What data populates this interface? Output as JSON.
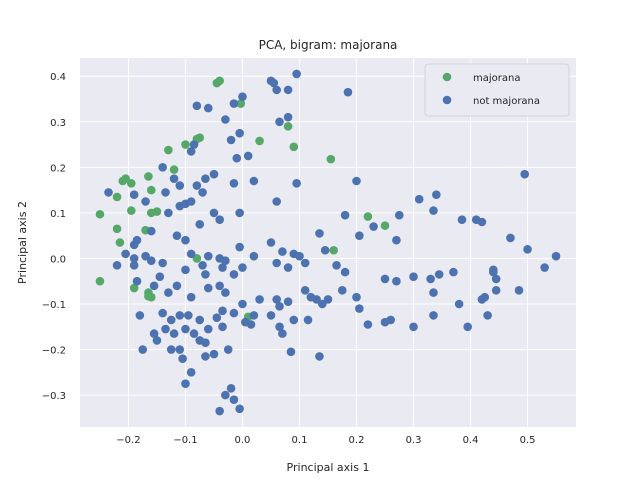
{
  "chart_data": {
    "type": "scatter",
    "title": "PCA, bigram: majorana",
    "xlabel": "Principal axis 1",
    "ylabel": "Principal axis 2",
    "xlim": [
      -0.285,
      0.585
    ],
    "ylim": [
      -0.37,
      0.44
    ],
    "xticks": [
      -0.2,
      -0.1,
      0.0,
      0.1,
      0.2,
      0.3,
      0.4,
      0.5
    ],
    "xtick_labels": [
      "−0.2",
      "−0.1",
      "0.0",
      "0.1",
      "0.2",
      "0.3",
      "0.4",
      "0.5"
    ],
    "yticks": [
      -0.3,
      -0.2,
      -0.1,
      0.0,
      0.1,
      0.2,
      0.3,
      0.4
    ],
    "ytick_labels": [
      "−0.3",
      "−0.2",
      "−0.1",
      "0.0",
      "0.1",
      "0.2",
      "0.3",
      "0.4"
    ],
    "grid": true,
    "background": "#eaeaf2",
    "legend_position": "top-right",
    "series": [
      {
        "name": "majorana",
        "color": "#55a868",
        "points": [
          [
            -0.04,
            0.39
          ],
          [
            -0.045,
            0.385
          ],
          [
            -0.003,
            0.34
          ],
          [
            0.08,
            0.29
          ],
          [
            0.09,
            0.245
          ],
          [
            -0.075,
            0.265
          ],
          [
            -0.08,
            0.262
          ],
          [
            -0.1,
            0.25
          ],
          [
            -0.13,
            0.238
          ],
          [
            0.155,
            0.218
          ],
          [
            0.03,
            0.258
          ],
          [
            -0.12,
            0.195
          ],
          [
            -0.165,
            0.18
          ],
          [
            -0.205,
            0.175
          ],
          [
            -0.21,
            0.17
          ],
          [
            -0.195,
            0.165
          ],
          [
            -0.16,
            0.15
          ],
          [
            -0.22,
            0.135
          ],
          [
            -0.195,
            0.105
          ],
          [
            -0.16,
            0.1
          ],
          [
            -0.15,
            0.103
          ],
          [
            -0.25,
            0.097
          ],
          [
            -0.22,
            0.065
          ],
          [
            -0.17,
            0.062
          ],
          [
            -0.215,
            0.035
          ],
          [
            -0.08,
            0.0
          ],
          [
            0.22,
            0.092
          ],
          [
            0.25,
            0.072
          ],
          [
            0.16,
            0.018
          ],
          [
            0.01,
            -0.128
          ],
          [
            -0.19,
            -0.065
          ],
          [
            -0.165,
            -0.075
          ],
          [
            -0.16,
            -0.085
          ],
          [
            -0.165,
            -0.083
          ],
          [
            -0.25,
            -0.05
          ]
        ]
      },
      {
        "name": "not majorana",
        "color": "#4c72b0",
        "points": [
          [
            0.095,
            0.405
          ],
          [
            0.05,
            0.39
          ],
          [
            0.055,
            0.385
          ],
          [
            0.06,
            0.37
          ],
          [
            0.08,
            0.37
          ],
          [
            0.185,
            0.365
          ],
          [
            0.0,
            0.355
          ],
          [
            -0.08,
            0.335
          ],
          [
            -0.06,
            0.33
          ],
          [
            -0.015,
            0.34
          ],
          [
            -0.03,
            0.305
          ],
          [
            0.065,
            0.3
          ],
          [
            0.08,
            0.31
          ],
          [
            -0.005,
            0.275
          ],
          [
            -0.02,
            0.26
          ],
          [
            -0.09,
            0.235
          ],
          [
            -0.085,
            0.25
          ],
          [
            0.01,
            0.225
          ],
          [
            -0.01,
            0.22
          ],
          [
            -0.015,
            0.165
          ],
          [
            -0.12,
            0.175
          ],
          [
            -0.14,
            0.2
          ],
          [
            -0.065,
            0.175
          ],
          [
            -0.11,
            0.16
          ],
          [
            -0.08,
            0.16
          ],
          [
            -0.05,
            0.185
          ],
          [
            0.02,
            0.17
          ],
          [
            0.095,
            0.165
          ],
          [
            0.2,
            0.17
          ],
          [
            -0.07,
            0.145
          ],
          [
            -0.135,
            0.145
          ],
          [
            -0.19,
            0.14
          ],
          [
            -0.235,
            0.145
          ],
          [
            -0.17,
            0.125
          ],
          [
            -0.09,
            0.125
          ],
          [
            -0.1,
            0.12
          ],
          [
            -0.11,
            0.115
          ],
          [
            -0.13,
            0.1
          ],
          [
            -0.05,
            0.1
          ],
          [
            -0.04,
            0.085
          ],
          [
            -0.075,
            0.075
          ],
          [
            -0.005,
            0.1
          ],
          [
            0.06,
            0.125
          ],
          [
            0.18,
            0.095
          ],
          [
            0.23,
            0.07
          ],
          [
            0.205,
            0.05
          ],
          [
            0.27,
            0.04
          ],
          [
            0.275,
            0.095
          ],
          [
            0.31,
            0.13
          ],
          [
            0.34,
            0.14
          ],
          [
            0.335,
            0.105
          ],
          [
            0.385,
            0.085
          ],
          [
            0.41,
            0.085
          ],
          [
            0.42,
            0.08
          ],
          [
            0.495,
            0.185
          ],
          [
            0.47,
            0.045
          ],
          [
            0.5,
            0.02
          ],
          [
            0.55,
            0.005
          ],
          [
            0.53,
            -0.02
          ],
          [
            -0.1,
            0.04
          ],
          [
            -0.115,
            0.05
          ],
          [
            -0.16,
            0.06
          ],
          [
            -0.185,
            0.04
          ],
          [
            -0.19,
            0.03
          ],
          [
            -0.205,
            0.01
          ],
          [
            -0.19,
            0.0
          ],
          [
            -0.17,
            0.005
          ],
          [
            -0.16,
            -0.005
          ],
          [
            -0.14,
            -0.01
          ],
          [
            -0.09,
            0.01
          ],
          [
            -0.06,
            0.005
          ],
          [
            -0.07,
            -0.015
          ],
          [
            -0.04,
            0.0
          ],
          [
            -0.03,
            -0.005
          ],
          [
            -0.005,
            0.025
          ],
          [
            0.02,
            0.005
          ],
          [
            0.05,
            0.035
          ],
          [
            0.07,
            0.015
          ],
          [
            0.09,
            0.01
          ],
          [
            0.1,
            0.005
          ],
          [
            0.135,
            0.055
          ],
          [
            0.145,
            0.018
          ],
          [
            0.165,
            -0.015
          ],
          [
            0.18,
            -0.03
          ],
          [
            0.11,
            -0.01
          ],
          [
            0.08,
            -0.02
          ],
          [
            0.06,
            -0.01
          ],
          [
            0.0,
            -0.02
          ],
          [
            -0.015,
            -0.035
          ],
          [
            -0.035,
            -0.02
          ],
          [
            -0.065,
            -0.035
          ],
          [
            -0.1,
            -0.025
          ],
          [
            -0.145,
            -0.04
          ],
          [
            -0.155,
            -0.06
          ],
          [
            -0.185,
            -0.05
          ],
          [
            -0.19,
            -0.015
          ],
          [
            -0.22,
            -0.015
          ],
          [
            -0.115,
            -0.06
          ],
          [
            -0.13,
            -0.075
          ],
          [
            -0.09,
            -0.085
          ],
          [
            -0.06,
            -0.065
          ],
          [
            -0.04,
            -0.06
          ],
          [
            -0.03,
            -0.075
          ],
          [
            0.0,
            -0.1
          ],
          [
            0.03,
            -0.09
          ],
          [
            0.06,
            -0.09
          ],
          [
            0.065,
            -0.105
          ],
          [
            0.08,
            -0.095
          ],
          [
            0.11,
            -0.07
          ],
          [
            0.12,
            -0.085
          ],
          [
            0.13,
            -0.09
          ],
          [
            0.14,
            -0.1
          ],
          [
            0.15,
            -0.09
          ],
          [
            0.175,
            -0.07
          ],
          [
            0.2,
            -0.085
          ],
          [
            0.25,
            -0.045
          ],
          [
            0.27,
            -0.05
          ],
          [
            0.3,
            -0.04
          ],
          [
            0.33,
            -0.045
          ],
          [
            0.345,
            -0.035
          ],
          [
            0.37,
            -0.03
          ],
          [
            0.335,
            -0.075
          ],
          [
            0.38,
            -0.1
          ],
          [
            0.42,
            -0.09
          ],
          [
            0.425,
            -0.085
          ],
          [
            0.44,
            -0.025
          ],
          [
            0.445,
            -0.045
          ],
          [
            0.445,
            -0.07
          ],
          [
            0.44,
            -0.03
          ],
          [
            0.485,
            -0.07
          ],
          [
            0.395,
            -0.15
          ],
          [
            0.43,
            -0.125
          ],
          [
            0.335,
            -0.125
          ],
          [
            0.3,
            -0.15
          ],
          [
            0.26,
            -0.135
          ],
          [
            0.25,
            -0.14
          ],
          [
            0.22,
            -0.145
          ],
          [
            0.205,
            -0.11
          ],
          [
            -0.18,
            -0.125
          ],
          [
            -0.14,
            -0.12
          ],
          [
            -0.125,
            -0.135
          ],
          [
            -0.11,
            -0.125
          ],
          [
            -0.095,
            -0.125
          ],
          [
            -0.075,
            -0.135
          ],
          [
            -0.06,
            -0.155
          ],
          [
            -0.045,
            -0.13
          ],
          [
            -0.035,
            -0.115
          ],
          [
            -0.015,
            -0.12
          ],
          [
            0.005,
            -0.14
          ],
          [
            0.015,
            -0.145
          ],
          [
            0.02,
            -0.125
          ],
          [
            0.05,
            -0.125
          ],
          [
            0.065,
            -0.15
          ],
          [
            0.07,
            -0.165
          ],
          [
            0.09,
            -0.135
          ],
          [
            0.115,
            -0.135
          ],
          [
            -0.155,
            -0.165
          ],
          [
            -0.135,
            -0.155
          ],
          [
            -0.12,
            -0.165
          ],
          [
            -0.1,
            -0.155
          ],
          [
            -0.085,
            -0.165
          ],
          [
            -0.075,
            -0.18
          ],
          [
            -0.065,
            -0.185
          ],
          [
            -0.035,
            -0.15
          ],
          [
            -0.15,
            -0.18
          ],
          [
            -0.175,
            -0.2
          ],
          [
            -0.125,
            -0.2
          ],
          [
            -0.11,
            -0.2
          ],
          [
            -0.105,
            -0.22
          ],
          [
            -0.065,
            -0.215
          ],
          [
            -0.05,
            -0.21
          ],
          [
            -0.025,
            -0.2
          ],
          [
            0.085,
            -0.205
          ],
          [
            0.135,
            -0.215
          ],
          [
            -0.09,
            -0.25
          ],
          [
            -0.1,
            -0.275
          ],
          [
            -0.02,
            -0.285
          ],
          [
            -0.03,
            -0.3
          ],
          [
            -0.015,
            -0.31
          ],
          [
            -0.04,
            -0.335
          ],
          [
            -0.005,
            -0.33
          ]
        ]
      }
    ]
  }
}
